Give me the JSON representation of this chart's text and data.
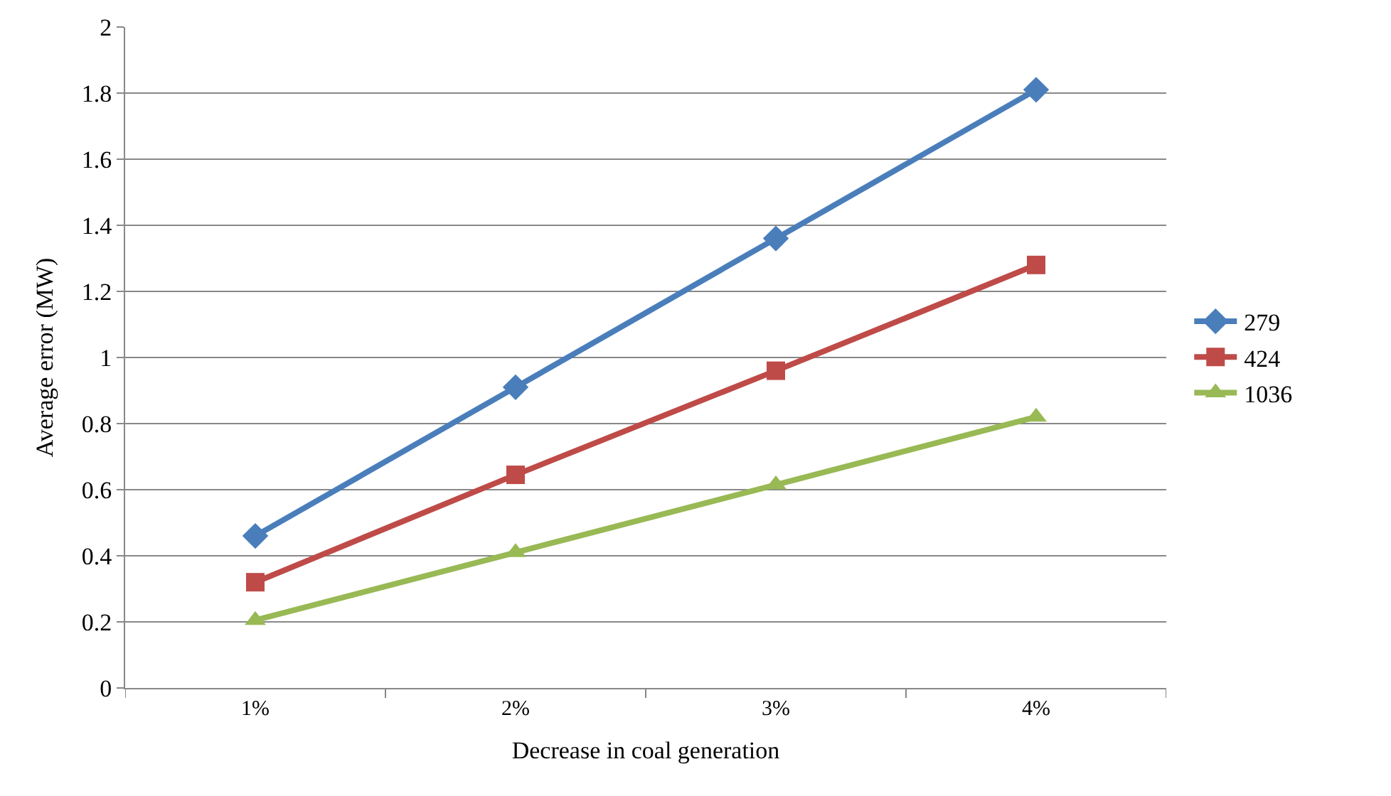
{
  "chart_data": {
    "type": "line",
    "xlabel": "Decrease in coal generation",
    "ylabel": "Average error (MW)",
    "categories": [
      "1%",
      "2%",
      "3%",
      "4%"
    ],
    "series": [
      {
        "name": "279",
        "color": "#4a7ebb",
        "marker": "diamond",
        "values": [
          0.46,
          0.91,
          1.36,
          1.81
        ]
      },
      {
        "name": "424",
        "color": "#be4b48",
        "marker": "square",
        "values": [
          0.32,
          0.645,
          0.96,
          1.28
        ]
      },
      {
        "name": "1036",
        "color": "#98b954",
        "marker": "triangle",
        "values": [
          0.205,
          0.41,
          0.615,
          0.82
        ]
      }
    ],
    "ylim": [
      0,
      2
    ],
    "yticks": [
      0,
      0.2,
      0.4,
      0.6,
      0.8,
      1,
      1.2,
      1.4,
      1.6,
      1.8,
      2
    ],
    "grid": "y",
    "legend": "right",
    "line_style": "solid"
  }
}
